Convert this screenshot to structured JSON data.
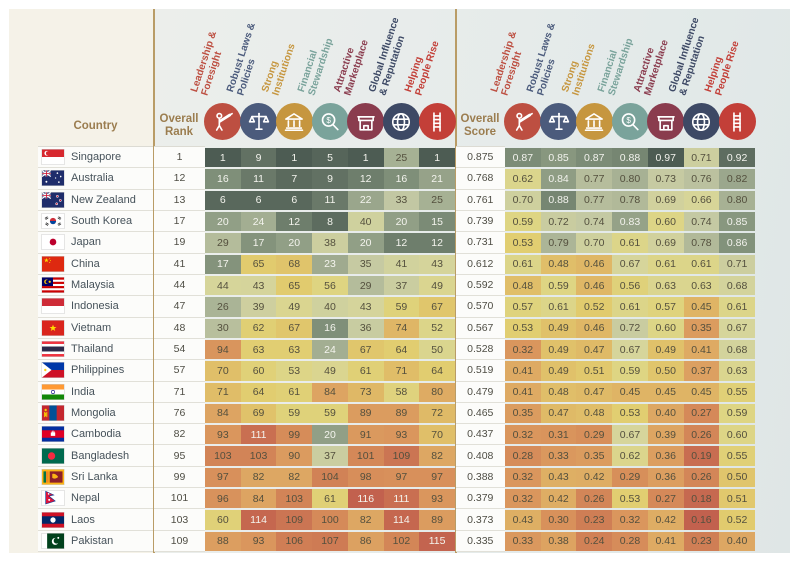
{
  "chart_data": {
    "type": "heatmap",
    "country_header": "Country",
    "overall_rank_header": "Overall Rank",
    "overall_score_header": "Overall Score",
    "divider_color": "#b99c66",
    "header_text_color": "#9b7d4f",
    "rank_range": [
      1,
      116
    ],
    "score_range": [
      0.16,
      0.97
    ],
    "palette": [
      [
        0.0,
        "#4d5c53"
      ],
      [
        0.06,
        "#5d6c5f"
      ],
      [
        0.13,
        "#7f8f79"
      ],
      [
        0.2,
        "#a3ae92"
      ],
      [
        0.28,
        "#c3c8a3"
      ],
      [
        0.37,
        "#d6d59b"
      ],
      [
        0.47,
        "#ded583"
      ],
      [
        0.55,
        "#e1cd6f"
      ],
      [
        0.63,
        "#dfb766"
      ],
      [
        0.72,
        "#dda462"
      ],
      [
        0.82,
        "#d9935c"
      ],
      [
        0.91,
        "#d07f55"
      ],
      [
        1.0,
        "#c2614e"
      ]
    ],
    "categories": [
      {
        "label_line1": "Leadership &",
        "label_line2": "Foresight",
        "color": "#bd4f41",
        "icon": "telescope-person"
      },
      {
        "label_line1": "Robust Laws &",
        "label_line2": "Policies",
        "color": "#4b5b7c",
        "icon": "scales"
      },
      {
        "label_line1": "Strong",
        "label_line2": "Institutions",
        "color": "#c6963f",
        "icon": "bank"
      },
      {
        "label_line1": "Financial",
        "label_line2": "Stewardship",
        "color": "#7aa39b",
        "icon": "magnifier-dollar"
      },
      {
        "label_line1": "Attractive",
        "label_line2": "Marketplace",
        "color": "#8a3c4e",
        "icon": "storefront"
      },
      {
        "label_line1": "Global Influence",
        "label_line2": "& Reputation",
        "color": "#3d4965",
        "icon": "globe"
      },
      {
        "label_line1": "Helping",
        "label_line2": "People Rise",
        "color": "#c33f38",
        "icon": "ladder"
      }
    ],
    "rows": [
      {
        "country": "Singapore",
        "flag": "sg",
        "overall_rank": "1",
        "ranks": [
          1,
          9,
          1,
          5,
          1,
          25,
          1
        ],
        "overall_score": "0.875",
        "scores": [
          "0.87",
          "0.85",
          "0.87",
          "0.88",
          "0.97",
          "0.71",
          "0.92"
        ]
      },
      {
        "country": "Australia",
        "flag": "au",
        "overall_rank": "12",
        "ranks": [
          16,
          11,
          7,
          9,
          12,
          16,
          21
        ],
        "overall_score": "0.768",
        "scores": [
          "0.62",
          "0.84",
          "0.77",
          "0.80",
          "0.73",
          "0.76",
          "0.82"
        ]
      },
      {
        "country": "New Zealand",
        "flag": "nz",
        "overall_rank": "13",
        "ranks": [
          6,
          6,
          6,
          11,
          22,
          33,
          25
        ],
        "overall_score": "0.761",
        "scores": [
          "0.70",
          "0.88",
          "0.77",
          "0.78",
          "0.69",
          "0.66",
          "0.80"
        ]
      },
      {
        "country": "South Korea",
        "flag": "kr",
        "overall_rank": "17",
        "ranks": [
          20,
          24,
          12,
          8,
          40,
          20,
          15
        ],
        "overall_score": "0.739",
        "scores": [
          "0.59",
          "0.72",
          "0.74",
          "0.83",
          "0.60",
          "0.74",
          "0.85"
        ]
      },
      {
        "country": "Japan",
        "flag": "jp",
        "overall_rank": "19",
        "ranks": [
          29,
          17,
          20,
          38,
          20,
          12,
          12
        ],
        "overall_score": "0.731",
        "scores": [
          "0.53",
          "0.79",
          "0.70",
          "0.61",
          "0.69",
          "0.78",
          "0.86"
        ]
      },
      {
        "country": "China",
        "flag": "cn",
        "overall_rank": "41",
        "ranks": [
          17,
          65,
          68,
          23,
          35,
          41,
          43
        ],
        "overall_score": "0.612",
        "scores": [
          "0.61",
          "0.48",
          "0.46",
          "0.67",
          "0.61",
          "0.61",
          "0.71"
        ]
      },
      {
        "country": "Malaysia",
        "flag": "my",
        "overall_rank": "44",
        "ranks": [
          44,
          43,
          65,
          56,
          29,
          37,
          49
        ],
        "overall_score": "0.592",
        "scores": [
          "0.48",
          "0.59",
          "0.46",
          "0.56",
          "0.63",
          "0.63",
          "0.68"
        ]
      },
      {
        "country": "Indonesia",
        "flag": "id",
        "overall_rank": "47",
        "ranks": [
          26,
          39,
          49,
          40,
          43,
          59,
          67
        ],
        "overall_score": "0.570",
        "scores": [
          "0.57",
          "0.61",
          "0.52",
          "0.61",
          "0.57",
          "0.45",
          "0.61"
        ]
      },
      {
        "country": "Vietnam",
        "flag": "vn",
        "overall_rank": "48",
        "ranks": [
          30,
          62,
          67,
          16,
          36,
          74,
          52
        ],
        "overall_score": "0.567",
        "scores": [
          "0.53",
          "0.49",
          "0.46",
          "0.72",
          "0.60",
          "0.35",
          "0.67"
        ]
      },
      {
        "country": "Thailand",
        "flag": "th",
        "overall_rank": "54",
        "ranks": [
          94,
          63,
          63,
          24,
          67,
          64,
          50
        ],
        "overall_score": "0.528",
        "scores": [
          "0.32",
          "0.49",
          "0.47",
          "0.67",
          "0.49",
          "0.41",
          "0.68"
        ]
      },
      {
        "country": "Philippines",
        "flag": "ph",
        "overall_rank": "57",
        "ranks": [
          70,
          60,
          53,
          49,
          61,
          71,
          64
        ],
        "overall_score": "0.519",
        "scores": [
          "0.41",
          "0.49",
          "0.51",
          "0.59",
          "0.50",
          "0.37",
          "0.63"
        ]
      },
      {
        "country": "India",
        "flag": "in",
        "overall_rank": "71",
        "ranks": [
          71,
          64,
          61,
          84,
          73,
          58,
          80
        ],
        "overall_score": "0.479",
        "scores": [
          "0.41",
          "0.48",
          "0.47",
          "0.45",
          "0.45",
          "0.45",
          "0.55"
        ]
      },
      {
        "country": "Mongolia",
        "flag": "mn",
        "overall_rank": "76",
        "ranks": [
          84,
          69,
          59,
          59,
          89,
          89,
          72
        ],
        "overall_score": "0.465",
        "scores": [
          "0.35",
          "0.47",
          "0.48",
          "0.53",
          "0.40",
          "0.27",
          "0.59"
        ]
      },
      {
        "country": "Cambodia",
        "flag": "kh",
        "overall_rank": "82",
        "ranks": [
          93,
          111,
          99,
          20,
          91,
          93,
          70
        ],
        "overall_score": "0.437",
        "scores": [
          "0.32",
          "0.31",
          "0.29",
          "0.67",
          "0.39",
          "0.26",
          "0.60"
        ]
      },
      {
        "country": "Bangladesh",
        "flag": "bd",
        "overall_rank": "95",
        "ranks": [
          103,
          103,
          90,
          37,
          101,
          109,
          82
        ],
        "overall_score": "0.408",
        "scores": [
          "0.28",
          "0.33",
          "0.35",
          "0.62",
          "0.36",
          "0.19",
          "0.55"
        ]
      },
      {
        "country": "Sri Lanka",
        "flag": "lk",
        "overall_rank": "99",
        "ranks": [
          97,
          82,
          82,
          104,
          98,
          97,
          97
        ],
        "overall_score": "0.388",
        "scores": [
          "0.32",
          "0.43",
          "0.42",
          "0.29",
          "0.36",
          "0.26",
          "0.50"
        ]
      },
      {
        "country": "Nepal",
        "flag": "np",
        "overall_rank": "101",
        "ranks": [
          96,
          84,
          103,
          61,
          116,
          111,
          93
        ],
        "overall_score": "0.379",
        "scores": [
          "0.32",
          "0.42",
          "0.26",
          "0.53",
          "0.27",
          "0.18",
          "0.51"
        ]
      },
      {
        "country": "Laos",
        "flag": "la",
        "overall_rank": "103",
        "ranks": [
          60,
          114,
          109,
          100,
          82,
          114,
          89
        ],
        "overall_score": "0.373",
        "scores": [
          "0.43",
          "0.30",
          "0.23",
          "0.32",
          "0.42",
          "0.16",
          "0.52"
        ]
      },
      {
        "country": "Pakistan",
        "flag": "pk",
        "overall_rank": "109",
        "ranks": [
          88,
          93,
          106,
          107,
          86,
          102,
          115
        ],
        "overall_score": "0.335",
        "scores": [
          "0.33",
          "0.38",
          "0.24",
          "0.28",
          "0.41",
          "0.23",
          "0.40"
        ]
      }
    ]
  }
}
